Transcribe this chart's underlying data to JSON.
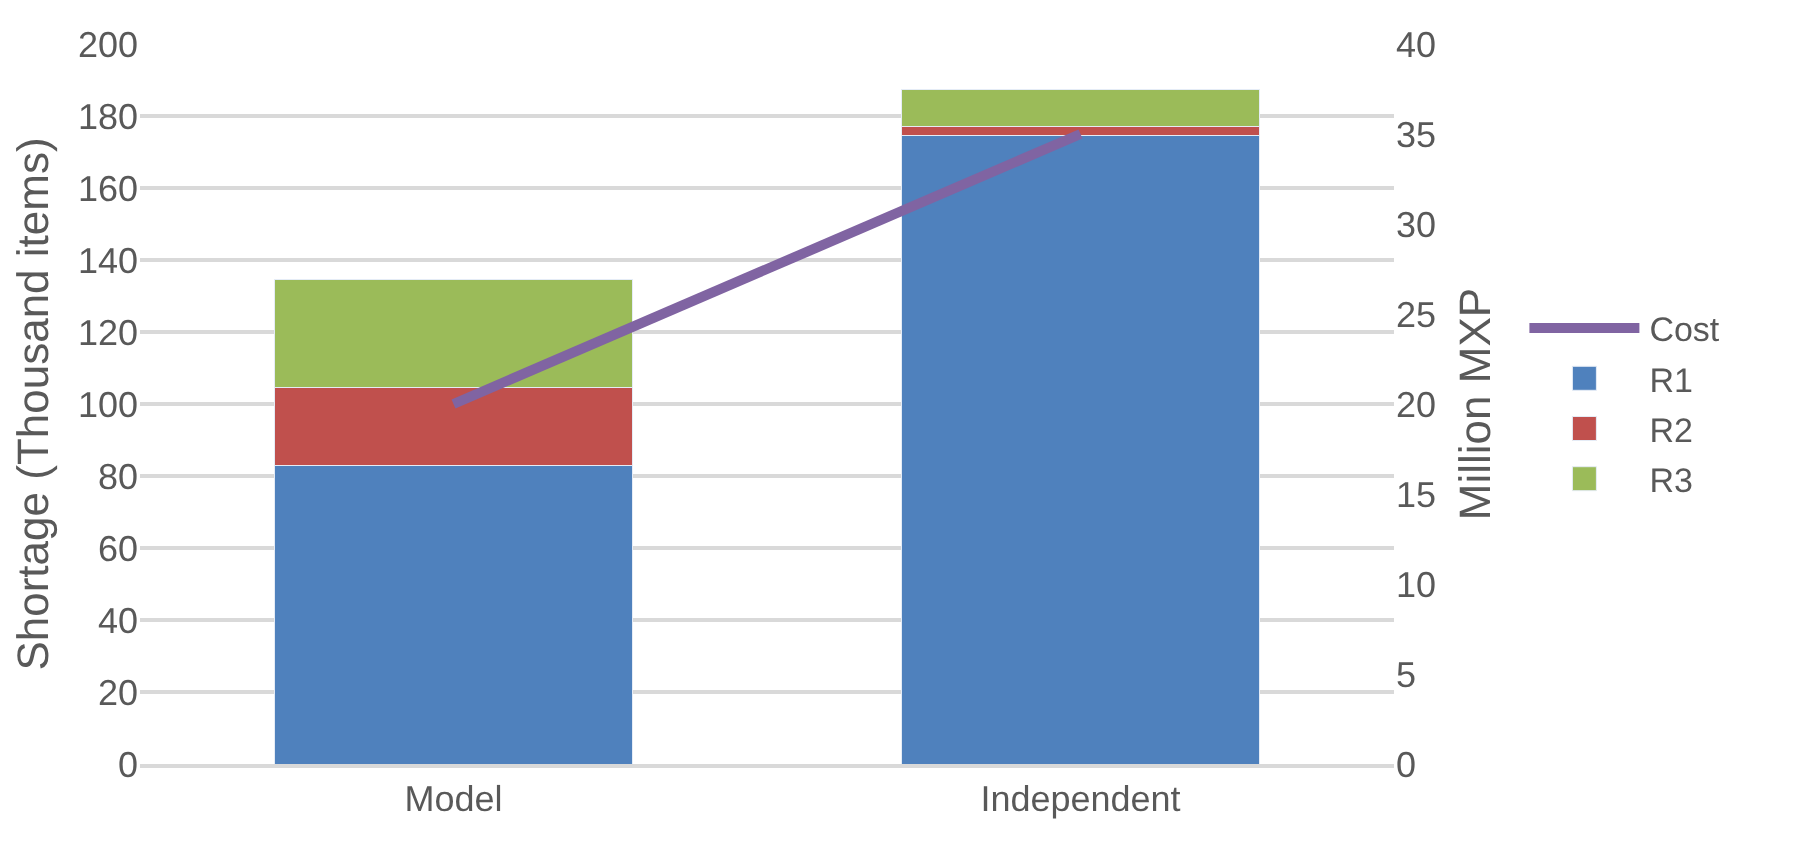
{
  "chart_data": {
    "type": "bar",
    "stacked": true,
    "ylabel": "Shortage (Thousand items)",
    "y2label": "Million MXP",
    "categories": [
      "Model",
      "Independent"
    ],
    "series": [
      {
        "name": "R1",
        "color": "#4f81bd",
        "values": [
          83,
          174.5
        ]
      },
      {
        "name": "R2",
        "color": "#c0504d",
        "values": [
          21.5,
          2.5
        ]
      },
      {
        "name": "R3",
        "color": "#9bbb59",
        "values": [
          30,
          10.5
        ]
      },
      {
        "name": "Cost",
        "type": "line",
        "axis": "y2",
        "color": "#8064a2",
        "values": [
          20,
          35
        ],
        "marker": "none"
      }
    ],
    "ylim": [
      0,
      200
    ],
    "yticks": [
      0,
      20,
      40,
      60,
      80,
      100,
      120,
      140,
      160,
      180,
      200
    ],
    "y2lim": [
      0,
      40
    ],
    "y2ticks": [
      0,
      5,
      10,
      15,
      20,
      25,
      30,
      35,
      40
    ],
    "grid": "y",
    "legend": "right"
  }
}
